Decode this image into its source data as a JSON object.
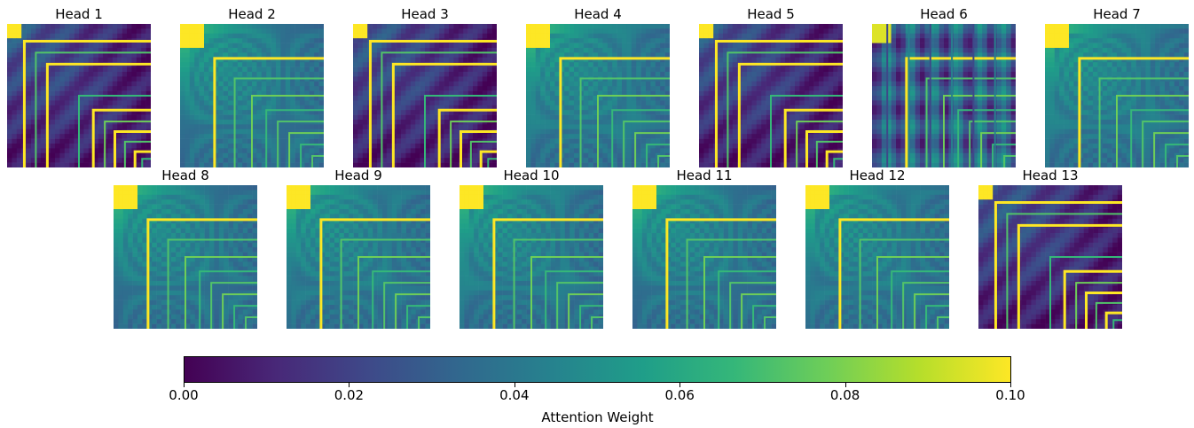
{
  "chart_data": {
    "type": "heatmap",
    "colormap": "viridis",
    "colormap_colors": [
      "#440154",
      "#482878",
      "#3e4989",
      "#31688e",
      "#26828e",
      "#1f9e89",
      "#35b779",
      "#6ece58",
      "#b5de2b",
      "#fde725"
    ],
    "panels": [
      {
        "title": "Head 1",
        "style": "nested"
      },
      {
        "title": "Head 2",
        "style": "diffuse"
      },
      {
        "title": "Head 3",
        "style": "nested"
      },
      {
        "title": "Head 4",
        "style": "diffuse"
      },
      {
        "title": "Head 5",
        "style": "nested"
      },
      {
        "title": "Head 6",
        "style": "striped"
      },
      {
        "title": "Head 7",
        "style": "diffuse"
      },
      {
        "title": "Head 8",
        "style": "diffuse"
      },
      {
        "title": "Head 9",
        "style": "diffuse"
      },
      {
        "title": "Head 10",
        "style": "diffuse"
      },
      {
        "title": "Head 11",
        "style": "diffuse"
      },
      {
        "title": "Head 12",
        "style": "diffuse"
      },
      {
        "title": "Head 13",
        "style": "nested"
      }
    ],
    "colorbar": {
      "label": "Attention Weight",
      "range": [
        0.0,
        0.1
      ],
      "ticks": [
        {
          "value": 0.0,
          "label": "0.00"
        },
        {
          "value": 0.02,
          "label": "0.02"
        },
        {
          "value": 0.04,
          "label": "0.04"
        },
        {
          "value": 0.06,
          "label": "0.06"
        },
        {
          "value": 0.08,
          "label": "0.08"
        },
        {
          "value": 0.1,
          "label": "0.10"
        }
      ]
    },
    "axes_visible": false
  }
}
